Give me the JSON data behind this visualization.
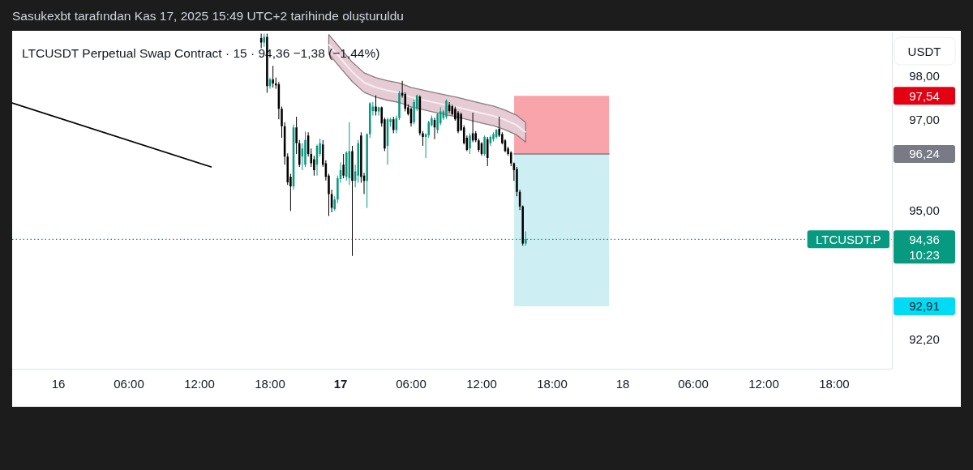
{
  "chart_data": {
    "type": "candlestick",
    "title": "LTCUSDT Perpetual Swap Contract · 15 · 94,36 −1,38 (−1,44%)",
    "ylabel": "USDT",
    "annotations": [
      "Sasukexbt tarafından Kas 17, 2025 15:49 UTC+2 tarihinde oluşturuldu",
      {
        "text": "LTCUSDT.P",
        "y": 94.36
      }
    ],
    "x": [
      "2025-11-16T17:15",
      "2025-11-16T17:30",
      "2025-11-16T17:45",
      "2025-11-16T18:00",
      "2025-11-16T18:15",
      "2025-11-16T18:30",
      "2025-11-16T18:45",
      "2025-11-16T19:00",
      "2025-11-16T19:15",
      "2025-11-16T19:30",
      "2025-11-16T19:45",
      "2025-11-16T20:00",
      "2025-11-16T20:15",
      "2025-11-16T20:30",
      "2025-11-16T20:45",
      "2025-11-16T21:00",
      "2025-11-16T21:15",
      "2025-11-16T21:30",
      "2025-11-16T21:45",
      "2025-11-16T22:00",
      "2025-11-16T22:15",
      "2025-11-16T22:30",
      "2025-11-16T22:45",
      "2025-11-16T23:00",
      "2025-11-16T23:15",
      "2025-11-16T23:30",
      "2025-11-16T23:45",
      "2025-11-17T00:00",
      "2025-11-17T00:15",
      "2025-11-17T00:30",
      "2025-11-17T00:45",
      "2025-11-17T01:00",
      "2025-11-17T01:15",
      "2025-11-17T01:30",
      "2025-11-17T01:45",
      "2025-11-17T02:00",
      "2025-11-17T02:15",
      "2025-11-17T02:30",
      "2025-11-17T02:45",
      "2025-11-17T03:00",
      "2025-11-17T03:15",
      "2025-11-17T03:30",
      "2025-11-17T03:45",
      "2025-11-17T04:00",
      "2025-11-17T04:15",
      "2025-11-17T04:30",
      "2025-11-17T04:45",
      "2025-11-17T05:00",
      "2025-11-17T05:15",
      "2025-11-17T05:30",
      "2025-11-17T05:45",
      "2025-11-17T06:00",
      "2025-11-17T06:15",
      "2025-11-17T06:30",
      "2025-11-17T06:45",
      "2025-11-17T07:00",
      "2025-11-17T07:15",
      "2025-11-17T07:30",
      "2025-11-17T07:45",
      "2025-11-17T08:00",
      "2025-11-17T08:15",
      "2025-11-17T08:30",
      "2025-11-17T08:45",
      "2025-11-17T09:00",
      "2025-11-17T09:15",
      "2025-11-17T09:30",
      "2025-11-17T09:45",
      "2025-11-17T10:00",
      "2025-11-17T10:15",
      "2025-11-17T10:30",
      "2025-11-17T10:45",
      "2025-11-17T11:00",
      "2025-11-17T11:15",
      "2025-11-17T11:30",
      "2025-11-17T11:45",
      "2025-11-17T12:00",
      "2025-11-17T12:15",
      "2025-11-17T12:30",
      "2025-11-17T12:45",
      "2025-11-17T13:00",
      "2025-11-17T13:15",
      "2025-11-17T13:30",
      "2025-11-17T13:45",
      "2025-11-17T14:00",
      "2025-11-17T14:15",
      "2025-11-17T14:30",
      "2025-11-17T14:45",
      "2025-11-17T15:00",
      "2025-11-17T15:15",
      "2025-11-17T15:30",
      "2025-11-17T15:45"
    ],
    "ohlc": [
      [
        98.85,
        98.95,
        98.62,
        98.75
      ],
      [
        98.75,
        98.95,
        98.65,
        98.88
      ],
      [
        98.88,
        98.95,
        97.61,
        97.76
      ],
      [
        97.76,
        97.95,
        97.7,
        97.91
      ],
      [
        97.91,
        98.22,
        97.73,
        97.82
      ],
      [
        97.82,
        97.95,
        97.7,
        97.78
      ],
      [
        97.8,
        97.85,
        97.01,
        97.25
      ],
      [
        97.25,
        97.3,
        96.6,
        96.86
      ],
      [
        96.86,
        96.95,
        96.0,
        96.18
      ],
      [
        96.18,
        96.25,
        95.55,
        95.61
      ],
      [
        95.73,
        95.8,
        94.98,
        95.52
      ],
      [
        95.52,
        96.9,
        95.45,
        96.83
      ],
      [
        96.83,
        97.07,
        96.24,
        96.48
      ],
      [
        96.48,
        96.55,
        95.95,
        96.0
      ],
      [
        96.18,
        96.48,
        95.88,
        96.36
      ],
      [
        96.0,
        96.74,
        95.95,
        96.55
      ],
      [
        96.65,
        96.72,
        96.18,
        96.24
      ],
      [
        96.24,
        96.36,
        95.95,
        96.03
      ],
      [
        96.12,
        96.2,
        95.76,
        95.88
      ],
      [
        96.0,
        96.45,
        95.76,
        96.42
      ],
      [
        96.24,
        96.58,
        96.18,
        96.48
      ],
      [
        96.45,
        96.55,
        95.95,
        96.0
      ],
      [
        96.03,
        96.1,
        95.65,
        95.73
      ],
      [
        95.76,
        95.8,
        94.87,
        95.35
      ],
      [
        95.35,
        95.45,
        94.95,
        95.05
      ],
      [
        95.02,
        95.3,
        94.98,
        95.23
      ],
      [
        95.23,
        95.76,
        95.15,
        95.7
      ],
      [
        95.68,
        96.05,
        95.6,
        95.88
      ],
      [
        96.0,
        96.24,
        95.7,
        95.76
      ],
      [
        95.73,
        96.3,
        95.65,
        96.27
      ],
      [
        95.7,
        96.95,
        95.55,
        96.3
      ],
      [
        96.3,
        96.42,
        94.0,
        95.64
      ],
      [
        95.64,
        96.0,
        95.5,
        95.85
      ],
      [
        95.76,
        96.55,
        95.6,
        96.48
      ],
      [
        96.65,
        96.72,
        95.6,
        95.73
      ],
      [
        95.76,
        95.82,
        95.35,
        95.64
      ],
      [
        95.64,
        96.7,
        95.05,
        96.68
      ],
      [
        96.68,
        97.4,
        96.6,
        97.37
      ],
      [
        97.2,
        97.4,
        97.1,
        97.3
      ],
      [
        97.3,
        97.55,
        97.1,
        97.19
      ],
      [
        97.19,
        97.3,
        97.1,
        97.28
      ],
      [
        97.28,
        97.3,
        96.85,
        96.92
      ],
      [
        97.01,
        97.05,
        96.3,
        96.36
      ],
      [
        96.42,
        97.05,
        96.0,
        97.01
      ],
      [
        96.95,
        97.05,
        96.85,
        97.01
      ],
      [
        97.01,
        97.07,
        96.7,
        96.77
      ],
      [
        96.77,
        97.1,
        96.7,
        97.04
      ],
      [
        97.04,
        97.65,
        97.0,
        97.61
      ],
      [
        97.61,
        97.88,
        97.5,
        97.55
      ],
      [
        97.58,
        97.62,
        97.19,
        97.25
      ],
      [
        97.28,
        97.35,
        97.1,
        97.13
      ],
      [
        97.25,
        97.28,
        96.85,
        96.92
      ],
      [
        96.95,
        97.45,
        96.9,
        97.4
      ],
      [
        97.25,
        97.57,
        97.2,
        97.55
      ],
      [
        97.52,
        97.55,
        96.65,
        96.7
      ],
      [
        96.7,
        96.75,
        96.42,
        96.62
      ],
      [
        96.62,
        96.7,
        96.15,
        96.68
      ],
      [
        96.66,
        96.98,
        96.6,
        96.95
      ],
      [
        96.88,
        97.1,
        96.85,
        97.04
      ],
      [
        97.0,
        97.05,
        96.57,
        96.83
      ],
      [
        96.77,
        97.15,
        96.7,
        97.13
      ],
      [
        96.92,
        97.28,
        96.88,
        97.19
      ],
      [
        97.04,
        97.22,
        97.0,
        97.19
      ],
      [
        97.07,
        97.46,
        97.02,
        97.43
      ],
      [
        97.34,
        97.4,
        97.15,
        97.2
      ],
      [
        97.31,
        97.34,
        97.1,
        97.13
      ],
      [
        97.25,
        97.3,
        96.98,
        97.01
      ],
      [
        97.16,
        97.2,
        96.7,
        96.74
      ],
      [
        97.13,
        97.16,
        96.75,
        96.77
      ],
      [
        96.83,
        96.88,
        96.45,
        96.48
      ],
      [
        96.6,
        96.65,
        96.3,
        96.33
      ],
      [
        96.36,
        96.7,
        96.24,
        96.65
      ],
      [
        96.7,
        97.16,
        96.5,
        96.54
      ],
      [
        96.7,
        96.75,
        96.5,
        96.54
      ],
      [
        96.54,
        96.58,
        96.28,
        96.33
      ],
      [
        96.48,
        96.5,
        96.2,
        96.24
      ],
      [
        96.24,
        96.65,
        96.2,
        96.62
      ],
      [
        96.57,
        96.62,
        95.97,
        96.15
      ],
      [
        96.48,
        96.65,
        96.42,
        96.62
      ],
      [
        96.57,
        96.72,
        96.52,
        96.68
      ],
      [
        96.62,
        96.8,
        96.58,
        96.77
      ],
      [
        96.8,
        97.07,
        96.62,
        96.65
      ],
      [
        96.68,
        96.72,
        96.45,
        96.48
      ],
      [
        96.54,
        96.57,
        96.28,
        96.3
      ],
      [
        96.36,
        96.4,
        96.2,
        96.24
      ],
      [
        96.27,
        96.3,
        95.97,
        96.03
      ],
      [
        96.03,
        96.05,
        95.64,
        95.88
      ],
      [
        95.9,
        95.95,
        95.3,
        95.4
      ],
      [
        95.4,
        95.45,
        95.0,
        95.08
      ],
      [
        95.08,
        95.1,
        94.22,
        94.27
      ],
      [
        94.27,
        94.53,
        94.22,
        94.36
      ]
    ],
    "colors": [
      "#000000",
      "#089981",
      "#000000",
      "#089981",
      "#000000",
      "#000000",
      "#000000",
      "#000000",
      "#000000",
      "#000000",
      "#000000",
      "#089981",
      "#000000",
      "#000000",
      "#089981",
      "#089981",
      "#000000",
      "#000000",
      "#000000",
      "#089981",
      "#089981",
      "#000000",
      "#000000",
      "#000000",
      "#000000",
      "#089981",
      "#089981",
      "#089981",
      "#000000",
      "#089981",
      "#089981",
      "#000000",
      "#089981",
      "#089981",
      "#000000",
      "#000000",
      "#089981",
      "#089981",
      "#089981",
      "#000000",
      "#089981",
      "#000000",
      "#000000",
      "#089981",
      "#089981",
      "#000000",
      "#089981",
      "#089981",
      "#000000",
      "#000000",
      "#000000",
      "#000000",
      "#089981",
      "#089981",
      "#000000",
      "#000000",
      "#089981",
      "#089981",
      "#089981",
      "#000000",
      "#089981",
      "#089981",
      "#089981",
      "#089981",
      "#000000",
      "#000000",
      "#000000",
      "#000000",
      "#000000",
      "#000000",
      "#000000",
      "#089981",
      "#000000",
      "#000000",
      "#000000",
      "#000000",
      "#089981",
      "#000000",
      "#089981",
      "#089981",
      "#089981",
      "#000000",
      "#000000",
      "#000000",
      "#000000",
      "#000000",
      "#000000",
      "#000000",
      "#000000",
      "#000000",
      "#089981"
    ],
    "series": [
      {
        "type": "bar",
        "x": [
          "2025-11-17T18:48",
          "2025-11-17T18:48"
        ],
        "base": [
          96.24,
          92.91
        ],
        "values": [
          1.3,
          3.33
        ],
        "colors": [
          "#f9a3aa",
          "#cdeff3"
        ]
      },
      {
        "type": "line",
        "x": [
          "2025-11-15T20:04",
          "2025-11-16T13:00"
        ],
        "values": [
          97.38,
          95.95
        ],
        "color": "#000000"
      },
      {
        "type": "line",
        "x": [
          "2025-11-16T23:00",
          "2025-11-17T00:00",
          "2025-11-17T01:00",
          "2025-11-17T02:00",
          "2025-11-17T03:00",
          "2025-11-17T04:00",
          "2025-11-17T05:00",
          "2025-11-17T06:00",
          "2025-11-17T08:00",
          "2025-11-17T10:00",
          "2025-11-17T12:00",
          "2025-11-17T13:00",
          "2025-11-17T14:00",
          "2025-11-17T15:00",
          "2025-11-17T15:45"
        ],
        "values": [
          98.71,
          98.39,
          98.08,
          97.84,
          97.73,
          97.66,
          97.61,
          97.51,
          97.39,
          97.28,
          97.15,
          97.09,
          97.0,
          96.88,
          96.72
        ],
        "lower": [
          98.49,
          98.17,
          97.86,
          97.62,
          97.51,
          97.44,
          97.39,
          97.29,
          97.17,
          97.06,
          96.93,
          96.87,
          96.78,
          96.66,
          96.5
        ],
        "upper": [
          98.93,
          98.61,
          98.3,
          98.06,
          97.95,
          97.88,
          97.83,
          97.73,
          97.61,
          97.5,
          97.37,
          97.31,
          97.22,
          97.1,
          96.94
        ],
        "color": "#f5ebee"
      },
      {
        "type": "line",
        "x": [
          "2025-11-17T14:46",
          "2025-11-17T22:50"
        ],
        "values": [
          96.24,
          96.24
        ],
        "color": "#787b86"
      }
    ],
    "xlim": [
      "2025-11-15T20:04",
      "2025-11-18T22:54"
    ],
    "xticks": [
      {
        "value": "2025-11-16",
        "label": "16"
      },
      {
        "value": "2025-11-16T06:00",
        "label": "06:00"
      },
      {
        "value": "2025-11-16T12:00",
        "label": "12:00"
      },
      {
        "value": "2025-11-16T18:00",
        "label": "18:00"
      },
      {
        "value": "2025-11-17",
        "label": "17"
      },
      {
        "value": "2025-11-17T06:00",
        "label": "06:00"
      },
      {
        "value": "2025-11-17T12:00",
        "label": "12:00"
      },
      {
        "value": "2025-11-17T18:00",
        "label": "18:00"
      },
      {
        "value": "2025-11-18",
        "label": "18"
      },
      {
        "value": "2025-11-18T06:00",
        "label": "06:00"
      },
      {
        "value": "2025-11-18T12:00",
        "label": "12:00"
      },
      {
        "value": "2025-11-18T18:00",
        "label": "18:00"
      }
    ],
    "ylim": [
      91.58,
      98.98
    ],
    "log": true,
    "yticks": [
      {
        "value": 98,
        "label": "98,00"
      },
      {
        "value": 97.54,
        "label": "97,54"
      },
      {
        "value": 97,
        "label": "97,00"
      },
      {
        "value": 96.24,
        "label": "96,24"
      },
      {
        "value": 95,
        "label": "95,00"
      },
      {
        "value": 92.91,
        "label": "92,91"
      },
      {
        "value": 92.2,
        "label": "92,20"
      }
    ],
    "ref_lines": [
      {
        "axis": "y",
        "value": 94.36,
        "label": "94,36\n10:23",
        "color": "#089981",
        "line_style": "dotted"
      }
    ]
  }
}
